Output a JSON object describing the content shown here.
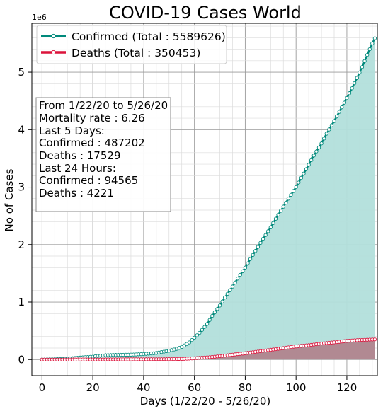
{
  "chart_data": {
    "type": "line",
    "title": "COVID-19 Cases World",
    "xlabel": "Days (1/22/20 - 5/26/20)",
    "ylabel": "No of Cases",
    "y_offset_label": "1e6",
    "xlim": [
      -4,
      132
    ],
    "ylim": [
      -0.28,
      5.85
    ],
    "x_ticks": [
      0,
      20,
      40,
      60,
      80,
      100,
      120
    ],
    "y_ticks": [
      0,
      1,
      2,
      3,
      4,
      5
    ],
    "grid": true,
    "minor_grid": true,
    "legend_position": "upper-left",
    "colors": {
      "confirmed": "#00897b",
      "confirmed_fill": "#b2dfdb",
      "deaths": "#dc143c",
      "deaths_fill": "#b07f8a"
    },
    "series": [
      {
        "name": "Confirmed (Total : 5589626)",
        "key": "confirmed",
        "points": [
          [
            0,
            0.0006
          ],
          [
            5,
            0.0062
          ],
          [
            10,
            0.0171
          ],
          [
            15,
            0.0344
          ],
          [
            20,
            0.0512
          ],
          [
            22,
            0.0646
          ],
          [
            25,
            0.076
          ],
          [
            30,
            0.082
          ],
          [
            35,
            0.0855
          ],
          [
            40,
            0.0958
          ],
          [
            45,
            0.115
          ],
          [
            50,
            0.1535
          ],
          [
            53,
            0.187
          ],
          [
            55,
            0.22
          ],
          [
            58,
            0.2987
          ],
          [
            60,
            0.38
          ],
          [
            62,
            0.465
          ],
          [
            65,
            0.62
          ],
          [
            67,
            0.76
          ],
          [
            70,
            0.94
          ],
          [
            72,
            1.08
          ],
          [
            75,
            1.27
          ],
          [
            77,
            1.41
          ],
          [
            80,
            1.6
          ],
          [
            82,
            1.75
          ],
          [
            85,
            1.96
          ],
          [
            87,
            2.1
          ],
          [
            90,
            2.3
          ],
          [
            92,
            2.45
          ],
          [
            95,
            2.66
          ],
          [
            97,
            2.8
          ],
          [
            100,
            3.0
          ],
          [
            102,
            3.16
          ],
          [
            105,
            3.39
          ],
          [
            107,
            3.55
          ],
          [
            110,
            3.76
          ],
          [
            112,
            3.93
          ],
          [
            115,
            4.15
          ],
          [
            117,
            4.31
          ],
          [
            120,
            4.55
          ],
          [
            122,
            4.72
          ],
          [
            124,
            4.9
          ],
          [
            126,
            5.09
          ],
          [
            128,
            5.3
          ],
          [
            130,
            5.5
          ],
          [
            131,
            5.5896
          ]
        ]
      },
      {
        "name": "Deaths (Total : 350453)",
        "key": "deaths",
        "points": [
          [
            0,
            0.0
          ],
          [
            10,
            0.0003
          ],
          [
            20,
            0.0014
          ],
          [
            30,
            0.003
          ],
          [
            40,
            0.005
          ],
          [
            50,
            0.0072
          ],
          [
            55,
            0.011
          ],
          [
            58,
            0.017
          ],
          [
            60,
            0.023
          ],
          [
            62,
            0.029
          ],
          [
            65,
            0.038
          ],
          [
            68,
            0.05
          ],
          [
            70,
            0.06
          ],
          [
            72,
            0.07
          ],
          [
            75,
            0.085
          ],
          [
            78,
            0.1
          ],
          [
            80,
            0.11
          ],
          [
            85,
            0.14
          ],
          [
            90,
            0.17
          ],
          [
            95,
            0.2
          ],
          [
            100,
            0.23
          ],
          [
            105,
            0.25
          ],
          [
            110,
            0.28
          ],
          [
            115,
            0.3
          ],
          [
            120,
            0.325
          ],
          [
            125,
            0.34
          ],
          [
            131,
            0.3505
          ]
        ]
      }
    ]
  },
  "stats_box": {
    "lines": [
      "From 1/22/20 to 5/26/20",
      "Mortality rate : 6.26",
      "Last 5 Days:",
      "Confirmed : 487202",
      "Deaths : 17529",
      "Last 24 Hours:",
      "Confirmed : 94565",
      "Deaths : 4221"
    ]
  }
}
